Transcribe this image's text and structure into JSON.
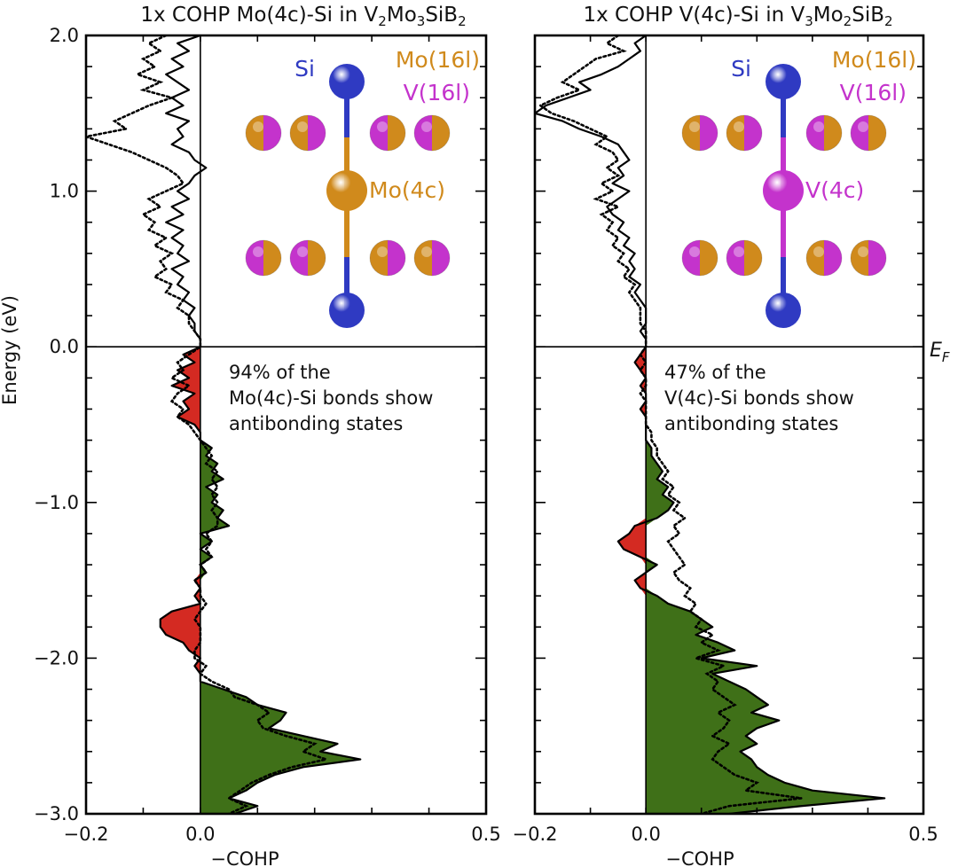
{
  "figure": {
    "ylabel": "Energy (eV)",
    "xlabel": "−COHP",
    "fermi_label": "E",
    "fermi_sub": "F"
  },
  "colors": {
    "antibonding": "#d42a22",
    "bonding": "#3f7018",
    "si": "#2f3ac2",
    "mo": "#d08a1c",
    "v": "#c433cc",
    "line": "#000000"
  },
  "chart_data": [
    {
      "type": "line",
      "title": "1x COHP Mo(4c)-Si in V2Mo3SiB2",
      "title_parts": {
        "pre": "1x COHP Mo(4c)-Si in V",
        "s1": "2",
        "mid": "Mo",
        "s2": "3",
        "post": "SiB",
        "s3": "2"
      },
      "xlabel": "−COHP",
      "ylabel": "Energy (eV)",
      "xlim": [
        -0.2,
        0.5
      ],
      "ylim": [
        -3.0,
        2.0
      ],
      "x_ticks": [
        -0.2,
        0.0,
        0.5
      ],
      "x_tick_labels": [
        "−0.2",
        "0.0",
        "0.5"
      ],
      "y_ticks": [
        -3.0,
        -2.0,
        -1.0,
        0.0,
        1.0,
        2.0
      ],
      "y_tick_labels": [
        "−3.0",
        "−2.0",
        "−1.0",
        "0.0",
        "1.0",
        "2.0"
      ],
      "fermi_level": 0.0,
      "annotation": [
        "94% of the",
        "Mo(4c)-Si bonds show",
        "antibonding states"
      ],
      "structure": {
        "top": "Si",
        "center": "Mo(4c)",
        "corner_a": "Mo(16l)",
        "corner_b": "V(16l)",
        "center_element": "mo"
      },
      "series": [
        {
          "name": "COHP (solid)",
          "style": "solid",
          "energy": [
            2.0,
            1.95,
            1.9,
            1.85,
            1.8,
            1.75,
            1.7,
            1.65,
            1.6,
            1.55,
            1.5,
            1.45,
            1.4,
            1.35,
            1.3,
            1.25,
            1.2,
            1.15,
            1.1,
            1.05,
            1.0,
            0.95,
            0.9,
            0.85,
            0.8,
            0.75,
            0.7,
            0.65,
            0.6,
            0.55,
            0.5,
            0.45,
            0.4,
            0.35,
            0.3,
            0.25,
            0.2,
            0.15,
            0.1,
            0.05,
            0.0,
            -0.05,
            -0.1,
            -0.15,
            -0.2,
            -0.25,
            -0.3,
            -0.35,
            -0.4,
            -0.45,
            -0.5,
            -0.55,
            -0.6,
            -0.65,
            -0.7,
            -0.75,
            -0.8,
            -0.85,
            -0.9,
            -0.95,
            -1.0,
            -1.05,
            -1.1,
            -1.15,
            -1.2,
            -1.25,
            -1.3,
            -1.35,
            -1.4,
            -1.45,
            -1.5,
            -1.55,
            -1.6,
            -1.65,
            -1.7,
            -1.75,
            -1.8,
            -1.85,
            -1.9,
            -1.95,
            -2.0,
            -2.05,
            -2.1,
            -2.15,
            -2.2,
            -2.25,
            -2.3,
            -2.35,
            -2.4,
            -2.45,
            -2.5,
            -2.55,
            -2.6,
            -2.65,
            -2.7,
            -2.75,
            -2.8,
            -2.85,
            -2.9,
            -2.95,
            -3.0
          ],
          "cohp": [
            0.0,
            -0.04,
            -0.02,
            -0.05,
            -0.03,
            -0.06,
            -0.04,
            -0.02,
            -0.05,
            -0.03,
            -0.06,
            -0.02,
            -0.04,
            -0.03,
            -0.05,
            -0.02,
            -0.01,
            0.01,
            -0.01,
            -0.02,
            -0.04,
            -0.02,
            -0.05,
            -0.03,
            -0.06,
            -0.03,
            -0.05,
            -0.03,
            -0.04,
            -0.02,
            -0.05,
            -0.03,
            -0.04,
            -0.02,
            -0.03,
            -0.01,
            -0.02,
            -0.01,
            -0.01,
            0.0,
            0.0,
            -0.03,
            -0.01,
            -0.04,
            -0.02,
            -0.05,
            -0.01,
            -0.03,
            -0.02,
            -0.04,
            -0.01,
            0.0,
            0.0,
            0.02,
            0.01,
            0.03,
            0.02,
            0.04,
            0.01,
            0.03,
            0.02,
            0.04,
            0.03,
            0.05,
            0.0,
            0.02,
            0.0,
            0.02,
            0.0,
            0.01,
            -0.01,
            0.0,
            -0.01,
            0.0,
            -0.05,
            -0.07,
            -0.07,
            -0.06,
            -0.03,
            -0.02,
            0.0,
            -0.01,
            0.0,
            0.0,
            0.04,
            0.08,
            0.1,
            0.15,
            0.14,
            0.12,
            0.18,
            0.24,
            0.21,
            0.28,
            0.18,
            0.13,
            0.1,
            0.08,
            0.05,
            0.1,
            0.06
          ]
        },
        {
          "name": "COHP (dotted)",
          "style": "dotted",
          "energy": [
            2.0,
            1.95,
            1.9,
            1.85,
            1.8,
            1.75,
            1.7,
            1.65,
            1.6,
            1.55,
            1.5,
            1.45,
            1.4,
            1.35,
            1.3,
            1.25,
            1.2,
            1.15,
            1.1,
            1.05,
            1.0,
            0.95,
            0.9,
            0.85,
            0.8,
            0.75,
            0.7,
            0.65,
            0.6,
            0.55,
            0.5,
            0.45,
            0.4,
            0.35,
            0.3,
            0.25,
            0.2,
            0.15,
            0.1,
            0.05,
            0.0,
            -0.05,
            -0.1,
            -0.15,
            -0.2,
            -0.25,
            -0.3,
            -0.35,
            -0.4,
            -0.45,
            -0.5,
            -0.55,
            -0.6,
            -0.65,
            -0.7,
            -0.75,
            -0.8,
            -0.85,
            -0.9,
            -0.95,
            -1.0,
            -1.05,
            -1.1,
            -1.15,
            -1.2,
            -1.25,
            -1.3,
            -1.35,
            -1.4,
            -1.45,
            -1.5,
            -1.55,
            -1.6,
            -1.65,
            -1.7,
            -1.75,
            -1.8,
            -1.85,
            -1.9,
            -1.95,
            -2.0,
            -2.05,
            -2.1,
            -2.15,
            -2.2,
            -2.25,
            -2.3,
            -2.35,
            -2.4,
            -2.45,
            -2.5,
            -2.55,
            -2.6,
            -2.65,
            -2.7,
            -2.75,
            -2.8,
            -2.85,
            -2.9,
            -2.95,
            -3.0
          ],
          "cohp": [
            -0.06,
            -0.09,
            -0.07,
            -0.1,
            -0.08,
            -0.11,
            -0.07,
            -0.1,
            -0.05,
            -0.09,
            -0.12,
            -0.15,
            -0.13,
            -0.2,
            -0.16,
            -0.12,
            -0.09,
            -0.06,
            -0.04,
            -0.03,
            -0.06,
            -0.09,
            -0.07,
            -0.1,
            -0.08,
            -0.09,
            -0.06,
            -0.08,
            -0.05,
            -0.07,
            -0.06,
            -0.08,
            -0.05,
            -0.06,
            -0.03,
            -0.04,
            -0.02,
            -0.02,
            -0.01,
            0.0,
            0.0,
            -0.02,
            -0.04,
            -0.03,
            -0.05,
            -0.02,
            -0.04,
            -0.05,
            -0.03,
            -0.04,
            -0.02,
            -0.01,
            0.0,
            0.01,
            0.02,
            0.01,
            0.03,
            0.02,
            0.03,
            0.02,
            0.03,
            0.02,
            0.03,
            0.03,
            0.01,
            0.02,
            0.01,
            0.02,
            0.0,
            0.01,
            -0.01,
            0.0,
            0.0,
            0.01,
            0.0,
            -0.01,
            0.0,
            0.0,
            0.0,
            -0.01,
            -0.01,
            0.01,
            0.0,
            0.02,
            0.05,
            0.06,
            0.1,
            0.12,
            0.1,
            0.11,
            0.15,
            0.2,
            0.18,
            0.22,
            0.16,
            0.12,
            0.09,
            0.07,
            0.05,
            0.08,
            0.05
          ]
        }
      ]
    },
    {
      "type": "line",
      "title": "1x COHP V(4c)-Si in V3Mo2SiB2",
      "title_parts": {
        "pre": "1x COHP V(4c)-Si in V",
        "s1": "3",
        "mid": "Mo",
        "s2": "2",
        "post": "SiB",
        "s3": "2"
      },
      "xlabel": "−COHP",
      "ylabel": "Energy (eV)",
      "xlim": [
        -0.2,
        0.5
      ],
      "ylim": [
        -3.0,
        2.0
      ],
      "x_ticks": [
        -0.2,
        0.0,
        0.5
      ],
      "x_tick_labels": [
        "−0.2",
        "0.0",
        "0.5"
      ],
      "y_ticks": [
        -3.0,
        -2.0,
        -1.0,
        0.0,
        1.0,
        2.0
      ],
      "y_tick_labels": [
        "−3.0",
        "−2.0",
        "−1.0",
        "0.0",
        "1.0",
        "2.0"
      ],
      "fermi_level": 0.0,
      "annotation": [
        "47% of the",
        "V(4c)-Si bonds show",
        "antibonding states"
      ],
      "structure": {
        "top": "Si",
        "center": "V(4c)",
        "corner_a": "Mo(16l)",
        "corner_b": "V(16l)",
        "center_element": "v"
      },
      "series": [
        {
          "name": "COHP (solid)",
          "style": "solid",
          "energy": [
            2.0,
            1.95,
            1.9,
            1.85,
            1.8,
            1.75,
            1.7,
            1.65,
            1.6,
            1.55,
            1.5,
            1.45,
            1.4,
            1.35,
            1.3,
            1.25,
            1.2,
            1.15,
            1.1,
            1.05,
            1.0,
            0.95,
            0.9,
            0.85,
            0.8,
            0.75,
            0.7,
            0.65,
            0.6,
            0.55,
            0.5,
            0.45,
            0.4,
            0.35,
            0.3,
            0.25,
            0.2,
            0.15,
            0.1,
            0.05,
            0.0,
            -0.05,
            -0.1,
            -0.15,
            -0.2,
            -0.25,
            -0.3,
            -0.35,
            -0.4,
            -0.45,
            -0.5,
            -0.55,
            -0.6,
            -0.65,
            -0.7,
            -0.75,
            -0.8,
            -0.85,
            -0.9,
            -0.95,
            -1.0,
            -1.05,
            -1.1,
            -1.15,
            -1.2,
            -1.25,
            -1.3,
            -1.35,
            -1.4,
            -1.45,
            -1.5,
            -1.55,
            -1.6,
            -1.65,
            -1.7,
            -1.75,
            -1.8,
            -1.85,
            -1.9,
            -1.95,
            -2.0,
            -2.05,
            -2.1,
            -2.15,
            -2.2,
            -2.25,
            -2.3,
            -2.35,
            -2.4,
            -2.45,
            -2.5,
            -2.55,
            -2.6,
            -2.65,
            -2.7,
            -2.75,
            -2.8,
            -2.85,
            -2.9,
            -2.95,
            -3.0
          ],
          "cohp": [
            0.0,
            -0.02,
            -0.01,
            -0.03,
            -0.05,
            -0.08,
            -0.12,
            -0.1,
            -0.14,
            -0.18,
            -0.2,
            -0.15,
            -0.12,
            -0.08,
            -0.05,
            -0.04,
            -0.03,
            -0.05,
            -0.04,
            -0.06,
            -0.03,
            -0.05,
            -0.07,
            -0.06,
            -0.04,
            -0.05,
            -0.03,
            -0.04,
            -0.02,
            -0.03,
            -0.02,
            -0.03,
            -0.01,
            -0.02,
            -0.01,
            0.0,
            0.0,
            0.0,
            -0.01,
            0.0,
            0.0,
            -0.01,
            -0.02,
            -0.01,
            0.0,
            -0.01,
            0.0,
            0.0,
            -0.01,
            0.0,
            0.0,
            0.0,
            0.0,
            0.01,
            0.01,
            0.02,
            0.03,
            0.02,
            0.04,
            0.03,
            0.05,
            0.04,
            0.02,
            -0.02,
            -0.03,
            -0.05,
            -0.04,
            -0.01,
            0.02,
            0.0,
            -0.02,
            -0.01,
            0.02,
            0.04,
            0.08,
            0.1,
            0.12,
            0.09,
            0.13,
            0.16,
            0.1,
            0.2,
            0.12,
            0.15,
            0.18,
            0.2,
            0.22,
            0.19,
            0.24,
            0.2,
            0.18,
            0.2,
            0.17,
            0.19,
            0.2,
            0.22,
            0.25,
            0.3,
            0.43,
            0.28,
            0.15
          ]
        },
        {
          "name": "COHP (dotted)",
          "style": "dotted",
          "energy": [
            2.0,
            1.95,
            1.9,
            1.85,
            1.8,
            1.75,
            1.7,
            1.65,
            1.6,
            1.55,
            1.5,
            1.45,
            1.4,
            1.35,
            1.3,
            1.25,
            1.2,
            1.15,
            1.1,
            1.05,
            1.0,
            0.95,
            0.9,
            0.85,
            0.8,
            0.75,
            0.7,
            0.65,
            0.6,
            0.55,
            0.5,
            0.45,
            0.4,
            0.35,
            0.3,
            0.25,
            0.2,
            0.15,
            0.1,
            0.05,
            0.0,
            -0.05,
            -0.1,
            -0.15,
            -0.2,
            -0.25,
            -0.3,
            -0.35,
            -0.4,
            -0.45,
            -0.5,
            -0.55,
            -0.6,
            -0.65,
            -0.7,
            -0.75,
            -0.8,
            -0.85,
            -0.9,
            -0.95,
            -1.0,
            -1.05,
            -1.1,
            -1.15,
            -1.2,
            -1.25,
            -1.3,
            -1.35,
            -1.4,
            -1.45,
            -1.5,
            -1.55,
            -1.6,
            -1.65,
            -1.7,
            -1.75,
            -1.8,
            -1.85,
            -1.9,
            -1.95,
            -2.0,
            -2.05,
            -2.1,
            -2.15,
            -2.2,
            -2.25,
            -2.3,
            -2.35,
            -2.4,
            -2.45,
            -2.5,
            -2.55,
            -2.6,
            -2.65,
            -2.7,
            -2.75,
            -2.8,
            -2.85,
            -2.9,
            -2.95,
            -3.0
          ],
          "cohp": [
            -0.05,
            -0.07,
            -0.04,
            -0.09,
            -0.11,
            -0.13,
            -0.15,
            -0.12,
            -0.16,
            -0.19,
            -0.17,
            -0.13,
            -0.1,
            -0.07,
            -0.09,
            -0.06,
            -0.05,
            -0.07,
            -0.05,
            -0.08,
            -0.06,
            -0.09,
            -0.05,
            -0.08,
            -0.06,
            -0.07,
            -0.05,
            -0.06,
            -0.04,
            -0.05,
            -0.03,
            -0.04,
            -0.02,
            -0.03,
            -0.02,
            -0.01,
            -0.01,
            -0.01,
            0.0,
            0.0,
            0.0,
            -0.01,
            0.0,
            -0.01,
            0.0,
            0.0,
            -0.01,
            0.0,
            0.0,
            0.0,
            0.0,
            0.01,
            0.01,
            0.02,
            0.02,
            0.03,
            0.04,
            0.03,
            0.05,
            0.04,
            0.06,
            0.05,
            0.07,
            0.05,
            0.06,
            0.04,
            0.05,
            0.06,
            0.07,
            0.05,
            0.06,
            0.08,
            0.07,
            0.09,
            0.08,
            0.1,
            0.09,
            0.12,
            0.1,
            0.13,
            0.09,
            0.14,
            0.11,
            0.13,
            0.12,
            0.14,
            0.16,
            0.13,
            0.15,
            0.14,
            0.12,
            0.15,
            0.13,
            0.12,
            0.14,
            0.16,
            0.2,
            0.18,
            0.28,
            0.15,
            0.1
          ]
        }
      ]
    }
  ]
}
